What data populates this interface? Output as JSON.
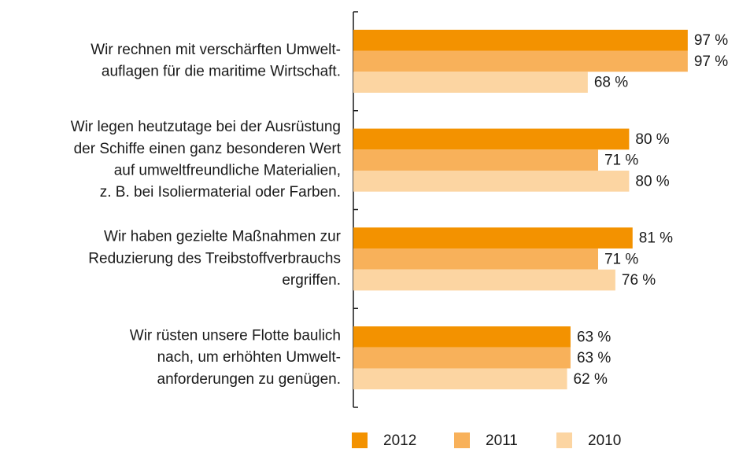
{
  "chart_data": {
    "type": "hbar",
    "categories": [
      [
        "Wir rechnen mit verschärften Umwelt-",
        "auflagen für die maritime Wirtschaft."
      ],
      [
        "Wir legen heutzutage bei der Ausrüstung",
        "der Schiffe einen ganz besonderen Wert",
        "auf umweltfreundliche Materialien,",
        "z. B. bei Isoliermaterial oder Farben."
      ],
      [
        "Wir haben gezielte Maßnahmen zur",
        "Reduzierung des Treibstoffverbrauchs",
        "ergriffen."
      ],
      [
        "Wir rüsten unsere Flotte baulich",
        "nach, um erhöhten Umwelt-",
        "anforderungen zu genügen."
      ]
    ],
    "series": [
      {
        "name": "2012",
        "color": "#f39200",
        "values": [
          97,
          80,
          81,
          63
        ],
        "value_labels": [
          "97 %",
          "80 %",
          "81 %",
          "63 %"
        ]
      },
      {
        "name": "2011",
        "color": "#f8b15a",
        "values": [
          97,
          71,
          71,
          63
        ],
        "value_labels": [
          "97 %",
          "71 %",
          "71 %",
          "63 %"
        ]
      },
      {
        "name": "2010",
        "color": "#fcd5a2",
        "values": [
          68,
          80,
          76,
          62
        ],
        "value_labels": [
          "68 %",
          "80 %",
          "76 %",
          "62 %"
        ]
      }
    ],
    "xlim": [
      0,
      100
    ]
  }
}
